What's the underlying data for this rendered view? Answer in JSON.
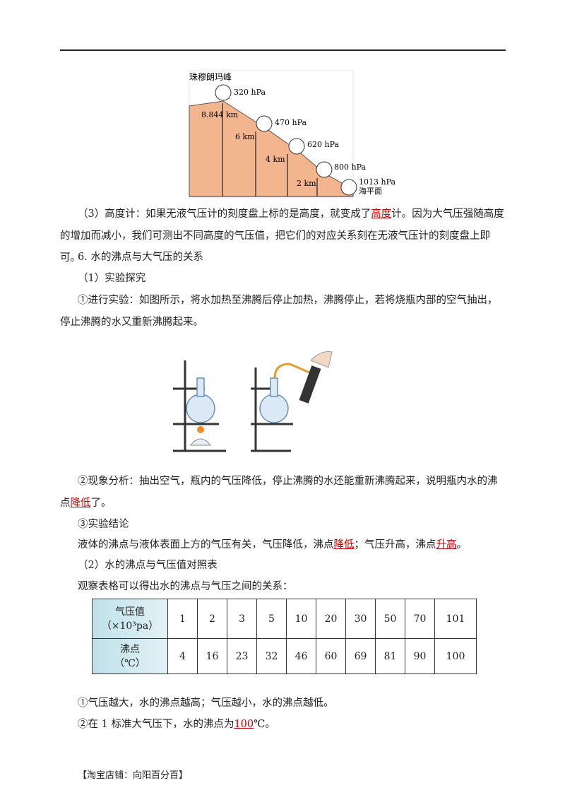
{
  "figure_mountain": {
    "peak_name": "珠穆朗玛峰",
    "pressures": [
      "320 hPa",
      "470 hPa",
      "620 hPa",
      "800 hPa",
      "1013 hPa"
    ],
    "heights": [
      "8.844 km",
      "6 km",
      "4 km",
      "2 km"
    ],
    "sea_level": "海平面"
  },
  "paragraphs": [
    {
      "parts": [
        {
          "text": "（3）高度计：如果无液气压计的刻度盘上标的是高度，就变成了"
        },
        {
          "answer": "高度"
        },
        {
          "text": "计。因为大气压强随高度的增加而减小，我们可测出不同高度的气压值，把它们的对应关系刻在无液气压计的刻度盘上即可。"
        }
      ]
    },
    {
      "parts": [
        {
          "text": "6. 水的沸点与大气压的关系"
        }
      ]
    },
    {
      "parts": [
        {
          "text": "（1）实验探究"
        }
      ]
    },
    {
      "parts": [
        {
          "text": "①进行实验：如图所示，将水加热至沸腾后停止加热，沸腾停止，若将烧瓶内部的空气抽出，停止沸腾的水又重新沸腾起来。"
        }
      ]
    },
    {
      "parts": [
        {
          "text": "②现象分析：抽出空气，瓶内的气压降低，停止沸腾的水还能重新沸腾起来，说明瓶内水的沸点"
        },
        {
          "answer": "降低"
        },
        {
          "text": "了。"
        }
      ]
    },
    {
      "parts": [
        {
          "text": "③实验结论"
        }
      ]
    },
    {
      "parts": [
        {
          "text": "液体的沸点与液体表面上方的气压有关，气压降低，沸点"
        },
        {
          "answer": "降低"
        },
        {
          "text": "；气压升高，沸点"
        },
        {
          "answer": "升高"
        },
        {
          "text": "。"
        }
      ]
    },
    {
      "parts": [
        {
          "text": "（2）水的沸点与气压值对照表"
        }
      ]
    },
    {
      "parts": [
        {
          "text": "观察表格可以得出水的沸点与气压之间的关系："
        }
      ]
    },
    {
      "parts": [
        {
          "text": "①气压越大，水的沸点越高；气压越小，水的沸点越低。"
        }
      ]
    },
    {
      "parts": [
        {
          "text": "②在 1 标准大气压下，水的沸点为"
        },
        {
          "answer": "100"
        },
        {
          "text": "℃。"
        }
      ]
    }
  ],
  "table": {
    "rows": [
      {
        "head": [
          "气压值",
          "（×10³pa）"
        ],
        "cells": [
          "1",
          "2",
          "3",
          "5",
          "10",
          "20",
          "30",
          "50",
          "70",
          "101"
        ]
      },
      {
        "head": [
          "沸点",
          "（℃）"
        ],
        "cells": [
          "4",
          "16",
          "23",
          "32",
          "46",
          "60",
          "69",
          "81",
          "90",
          "100"
        ]
      }
    ]
  },
  "footer": "【淘宝店铺：向阳百分百】"
}
